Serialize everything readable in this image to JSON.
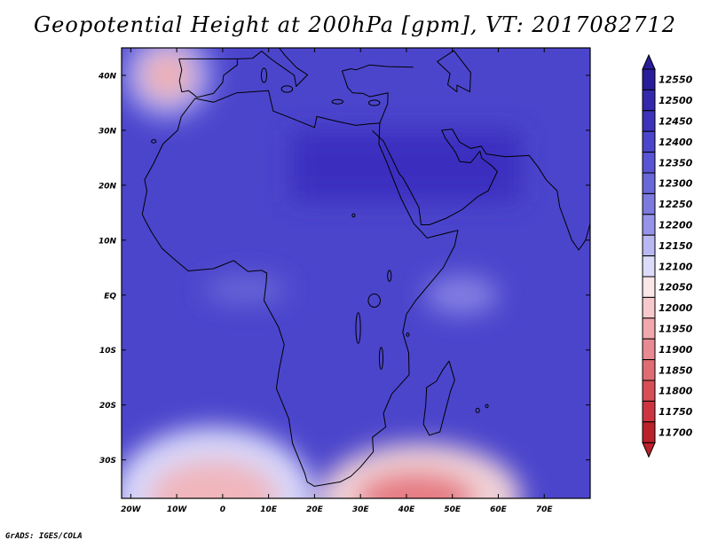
{
  "title": "Geopotential Height at 200hPa [gpm], VT: 2017082712",
  "credit": "GrADS: IGES/COLA",
  "map": {
    "projection": "latlon",
    "lon_range": [
      -22,
      80
    ],
    "lat_range": [
      -37,
      45
    ],
    "lat_ticks": [
      {
        "value": 40,
        "label": "40N"
      },
      {
        "value": 30,
        "label": "30N"
      },
      {
        "value": 20,
        "label": "20N"
      },
      {
        "value": 10,
        "label": "10N"
      },
      {
        "value": 0,
        "label": "EQ"
      },
      {
        "value": -10,
        "label": "10S"
      },
      {
        "value": -20,
        "label": "20S"
      },
      {
        "value": -30,
        "label": "30S"
      }
    ],
    "lon_ticks": [
      {
        "value": -20,
        "label": "20W"
      },
      {
        "value": -10,
        "label": "10W"
      },
      {
        "value": 0,
        "label": "0"
      },
      {
        "value": 10,
        "label": "10E"
      },
      {
        "value": 20,
        "label": "20E"
      },
      {
        "value": 30,
        "label": "30E"
      },
      {
        "value": 40,
        "label": "40E"
      },
      {
        "value": 50,
        "label": "50E"
      },
      {
        "value": 60,
        "label": "60E"
      },
      {
        "value": 70,
        "label": "70E"
      }
    ],
    "background_fill": "#4b45cc",
    "features": [
      {
        "name": "subtropical-ridge-core",
        "lon": [
          15,
          65
        ],
        "lat": [
          17,
          30
        ],
        "fill": "#3a2fbf"
      },
      {
        "name": "iberian-low-ring-1",
        "center": [
          -12,
          40
        ],
        "radius_deg": [
          10,
          8
        ],
        "fill": "#9a98f0"
      },
      {
        "name": "iberian-low-ring-2",
        "center": [
          -12,
          40
        ],
        "radius_deg": [
          6,
          5
        ],
        "fill": "#e8c0c8"
      },
      {
        "name": "iberian-low-core",
        "center": [
          -12,
          40
        ],
        "radius_deg": [
          3,
          2.5
        ],
        "fill": "#f1a3a8"
      },
      {
        "name": "equatorial-trough-atlantic",
        "center": [
          5,
          1
        ],
        "radius_deg": [
          9,
          2.5
        ],
        "fill": "#6a67d8"
      },
      {
        "name": "equatorial-trough-indian",
        "center": [
          52,
          0
        ],
        "radius_deg": [
          8,
          3.5
        ],
        "fill": "#8581e3"
      },
      {
        "name": "southern-trough-west",
        "center": [
          -2,
          -37
        ],
        "radius_deg": [
          22,
          13
        ],
        "fill": "#d8d8fa"
      },
      {
        "name": "southern-trough-east",
        "center": [
          43,
          -37
        ],
        "radius_deg": [
          22,
          10
        ],
        "fill": "#f1d3d8"
      },
      {
        "name": "southern-trough-west-inner",
        "center": [
          -2,
          -37
        ],
        "radius_deg": [
          14,
          7
        ],
        "fill": "#f0b6bc"
      },
      {
        "name": "southern-trough-east-inner",
        "center": [
          42,
          -37
        ],
        "radius_deg": [
          13,
          5
        ],
        "fill": "#e67b83"
      }
    ]
  },
  "colorbar": {
    "levels": [
      "12550",
      "12500",
      "12450",
      "12400",
      "12350",
      "12300",
      "12250",
      "12200",
      "12150",
      "12100",
      "12050",
      "12000",
      "11950",
      "11900",
      "11850",
      "11800",
      "11750",
      "11700"
    ],
    "colors": [
      "#2a1d9b",
      "#3429ad",
      "#3d33ba",
      "#4b45cc",
      "#5954d4",
      "#6a67d8",
      "#7c79df",
      "#9694ea",
      "#b9b8f2",
      "#dcdcfa",
      "#fbe6e8",
      "#f6c9cd",
      "#f1a8ad",
      "#e88a91",
      "#df6c73",
      "#d84e56",
      "#cc353f",
      "#ba2128"
    ]
  }
}
